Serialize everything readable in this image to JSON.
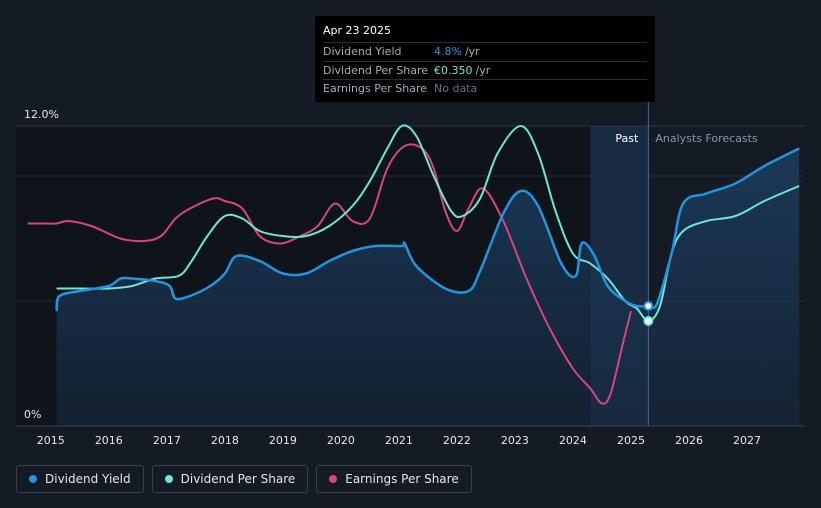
{
  "tooltip": {
    "date": "Apr 23 2025",
    "rows": [
      {
        "label": "Dividend Yield",
        "value": "4.8%",
        "unit": "/yr",
        "color": "#2394df"
      },
      {
        "label": "Dividend Per Share",
        "value": "€0.350",
        "unit": "/yr",
        "color": "#6ee7d0"
      },
      {
        "label": "Earnings Per Share",
        "value": "No data",
        "unit": "",
        "color": "#6b7280"
      }
    ]
  },
  "legend": [
    {
      "label": "Dividend Yield",
      "color": "#2394df"
    },
    {
      "label": "Dividend Per Share",
      "color": "#6ee7d0"
    },
    {
      "label": "Earnings Per Share",
      "color": "#d9457a"
    }
  ],
  "chart_data": {
    "type": "line",
    "title": "",
    "xlabel": "",
    "ylabel": "",
    "xlim": [
      2014.4,
      2028.0
    ],
    "ylim": [
      0,
      12.0
    ],
    "y_tick_labels": [
      "0%",
      "12.0%"
    ],
    "x_ticks": [
      2015,
      2016,
      2017,
      2018,
      2019,
      2020,
      2021,
      2022,
      2023,
      2024,
      2025,
      2026,
      2027
    ],
    "past_label": "Past",
    "forecast_label": "Analysts Forecasts",
    "forecast_start": 2025.3,
    "past_shade_start": 2024.3,
    "colors": {
      "yield": "#2394df",
      "dps": "#6ee7d0",
      "eps": "#d9457a"
    },
    "series": [
      {
        "name": "Dividend Yield",
        "key": "yield",
        "x": [
          2015.1,
          2015.15,
          2015.5,
          2016.0,
          2016.2,
          2016.4,
          2016.8,
          2017.05,
          2017.15,
          2017.4,
          2017.75,
          2018.0,
          2018.2,
          2018.6,
          2019.0,
          2019.4,
          2019.8,
          2020.2,
          2020.6,
          2021.05,
          2021.1,
          2021.3,
          2021.8,
          2022.2,
          2022.4,
          2022.8,
          2023.1,
          2023.4,
          2023.8,
          2024.05,
          2024.15,
          2024.35,
          2024.6,
          2024.9,
          2025.1,
          2025.3,
          2025.45,
          2025.7,
          2025.9,
          2026.3,
          2026.8,
          2027.3,
          2027.9
        ],
        "values": [
          4.6,
          5.2,
          5.4,
          5.6,
          5.9,
          5.9,
          5.8,
          5.6,
          5.1,
          5.2,
          5.6,
          6.1,
          6.8,
          6.6,
          6.1,
          6.1,
          6.6,
          7.0,
          7.2,
          7.2,
          7.3,
          6.4,
          5.5,
          5.4,
          6.2,
          8.5,
          9.4,
          8.8,
          6.5,
          6.0,
          7.3,
          6.9,
          5.6,
          5.0,
          4.8,
          4.8,
          4.9,
          6.9,
          8.9,
          9.3,
          9.7,
          10.4,
          11.1
        ]
      },
      {
        "name": "Dividend Per Share",
        "key": "dps",
        "x": [
          2015.1,
          2015.5,
          2016.0,
          2016.4,
          2016.8,
          2017.2,
          2017.4,
          2017.7,
          2018.0,
          2018.3,
          2018.6,
          2019.0,
          2019.4,
          2019.8,
          2020.2,
          2020.5,
          2020.8,
          2021.05,
          2021.3,
          2021.6,
          2021.9,
          2022.1,
          2022.4,
          2022.7,
          2023.1,
          2023.4,
          2023.7,
          2024.0,
          2024.3,
          2024.6,
          2024.9,
          2025.1,
          2025.3,
          2025.5,
          2025.7,
          2025.9,
          2026.3,
          2026.8,
          2027.3,
          2027.9
        ],
        "values": [
          5.5,
          5.5,
          5.5,
          5.6,
          5.9,
          6.0,
          6.5,
          7.6,
          8.4,
          8.3,
          7.8,
          7.6,
          7.6,
          8.0,
          8.8,
          9.8,
          11.1,
          12.0,
          11.6,
          10.0,
          8.6,
          8.4,
          9.1,
          10.9,
          12.0,
          10.9,
          8.6,
          6.9,
          6.5,
          5.9,
          5.0,
          4.7,
          4.2,
          4.8,
          6.9,
          7.8,
          8.2,
          8.4,
          9.0,
          9.6
        ]
      },
      {
        "name": "Earnings Per Share",
        "key": "eps",
        "x": [
          2014.6,
          2014.9,
          2015.1,
          2015.3,
          2015.7,
          2016.2,
          2016.6,
          2016.9,
          2017.15,
          2017.4,
          2017.8,
          2018.0,
          2018.3,
          2018.6,
          2018.95,
          2019.3,
          2019.6,
          2019.9,
          2020.2,
          2020.5,
          2020.8,
          2021.1,
          2021.4,
          2021.6,
          2021.8,
          2022.0,
          2022.2,
          2022.45,
          2022.8,
          2023.2,
          2023.6,
          2024.0,
          2024.3,
          2024.5,
          2024.65,
          2024.85,
          2025.0
        ],
        "values": [
          8.1,
          8.1,
          8.1,
          8.2,
          8.0,
          7.5,
          7.4,
          7.6,
          8.3,
          8.7,
          9.1,
          9.0,
          8.7,
          7.6,
          7.3,
          7.6,
          8.0,
          8.9,
          8.2,
          8.3,
          10.3,
          11.2,
          11.1,
          10.3,
          8.6,
          7.8,
          8.7,
          9.5,
          8.2,
          5.9,
          3.9,
          2.3,
          1.5,
          0.9,
          1.3,
          3.2,
          4.6
        ]
      }
    ],
    "markers": [
      {
        "series": "yield",
        "x": 2025.3,
        "value": 4.8
      },
      {
        "series": "dps",
        "x": 2025.3,
        "value": 4.2
      }
    ]
  }
}
